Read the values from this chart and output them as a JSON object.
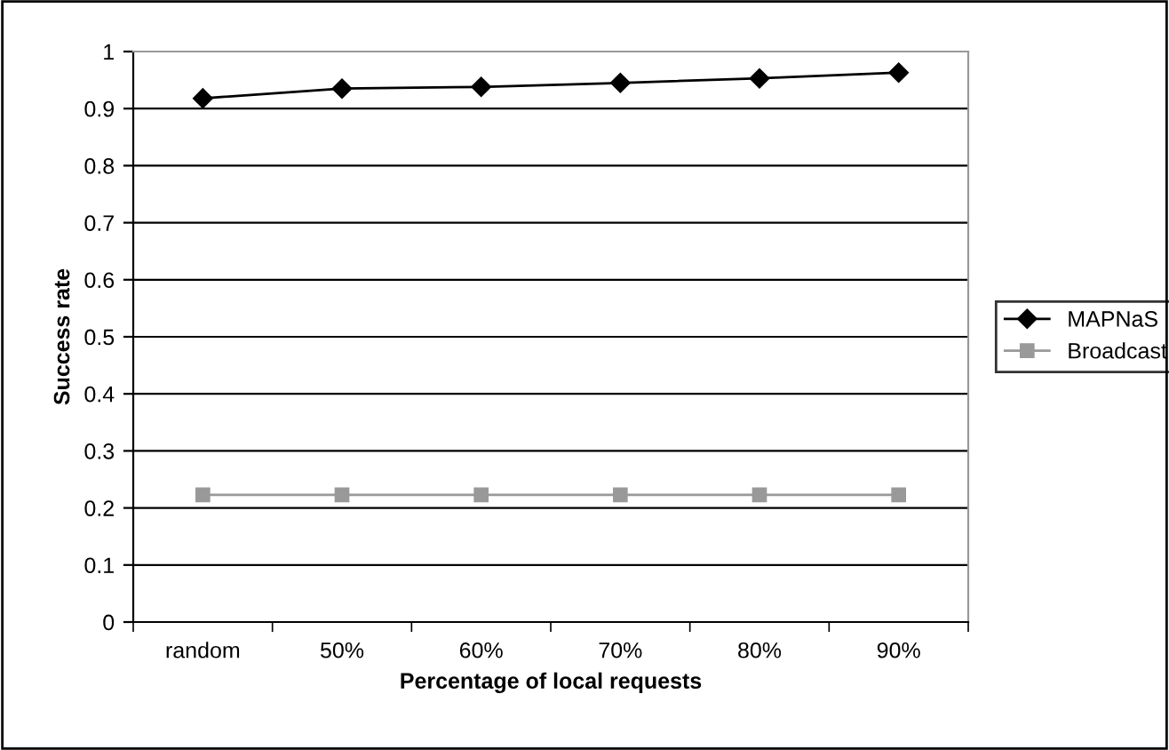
{
  "chart_data": {
    "type": "line",
    "xlabel": "Percentage of local requests",
    "ylabel": "Success rate",
    "categories": [
      "random",
      "50%",
      "60%",
      "70%",
      "80%",
      "90%"
    ],
    "series": [
      {
        "name": "MAPNaS",
        "color": "#000000",
        "marker": "diamond",
        "values": [
          0.918,
          0.935,
          0.938,
          0.945,
          0.953,
          0.963
        ]
      },
      {
        "name": "Broadcast",
        "color": "#999999",
        "marker": "square",
        "values": [
          0.223,
          0.223,
          0.223,
          0.223,
          0.223,
          0.223
        ]
      }
    ],
    "ylim": [
      0,
      1
    ],
    "yticks": [
      0,
      0.1,
      0.2,
      0.3,
      0.4,
      0.5,
      0.6,
      0.7,
      0.8,
      0.9,
      1
    ],
    "grid": "y",
    "legend": "right"
  }
}
